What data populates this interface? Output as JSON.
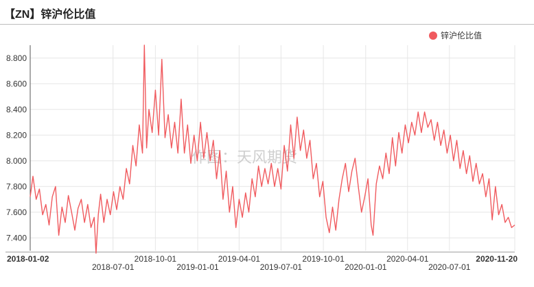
{
  "header": {
    "title": "【ZN】锌沪伦比值"
  },
  "watermark": "作图：天风期货",
  "colors": {
    "series": "#f05a5e",
    "grid": "#e6e6e6",
    "axis": "#555555"
  },
  "chart_data": {
    "type": "line",
    "title": "【ZN】锌沪伦比值",
    "legend_position": "top-right",
    "grid": true,
    "ylim": [
      7.3,
      8.9
    ],
    "xlim": [
      "2018-01-02",
      "2020-11-20"
    ],
    "yticks": [
      "7.400",
      "7.600",
      "7.800",
      "8.000",
      "8.200",
      "8.400",
      "8.600",
      "8.800"
    ],
    "xticks_top": [
      "2018-01-02",
      "2018-10-01",
      "2019-04-01",
      "2019-10-01",
      "2020-04-01",
      "2020-11-20"
    ],
    "xticks_bottom": [
      "2018-07-01",
      "2019-01-01",
      "2019-07-01",
      "2020-01-01",
      "2020-07-01"
    ],
    "series": [
      {
        "name": "锌沪伦比值",
        "points": [
          [
            "2018-01-02",
            7.72
          ],
          [
            "2018-01-08",
            7.88
          ],
          [
            "2018-01-15",
            7.7
          ],
          [
            "2018-01-22",
            7.78
          ],
          [
            "2018-01-29",
            7.58
          ],
          [
            "2018-02-05",
            7.66
          ],
          [
            "2018-02-12",
            7.5
          ],
          [
            "2018-02-19",
            7.72
          ],
          [
            "2018-02-26",
            7.8
          ],
          [
            "2018-03-05",
            7.42
          ],
          [
            "2018-03-12",
            7.64
          ],
          [
            "2018-03-19",
            7.52
          ],
          [
            "2018-03-26",
            7.73
          ],
          [
            "2018-04-02",
            7.6
          ],
          [
            "2018-04-09",
            7.46
          ],
          [
            "2018-04-16",
            7.63
          ],
          [
            "2018-04-23",
            7.7
          ],
          [
            "2018-04-30",
            7.52
          ],
          [
            "2018-05-07",
            7.66
          ],
          [
            "2018-05-14",
            7.48
          ],
          [
            "2018-05-21",
            7.56
          ],
          [
            "2018-05-25",
            7.28
          ],
          [
            "2018-05-30",
            7.58
          ],
          [
            "2018-06-04",
            7.74
          ],
          [
            "2018-06-11",
            7.52
          ],
          [
            "2018-06-18",
            7.7
          ],
          [
            "2018-06-25",
            7.58
          ],
          [
            "2018-07-02",
            7.76
          ],
          [
            "2018-07-09",
            7.62
          ],
          [
            "2018-07-16",
            7.8
          ],
          [
            "2018-07-23",
            7.7
          ],
          [
            "2018-07-30",
            7.94
          ],
          [
            "2018-08-06",
            7.82
          ],
          [
            "2018-08-13",
            8.12
          ],
          [
            "2018-08-20",
            7.96
          ],
          [
            "2018-08-27",
            8.28
          ],
          [
            "2018-09-03",
            8.06
          ],
          [
            "2018-09-07",
            8.9
          ],
          [
            "2018-09-12",
            8.1
          ],
          [
            "2018-09-17",
            8.4
          ],
          [
            "2018-09-24",
            8.22
          ],
          [
            "2018-10-01",
            8.55
          ],
          [
            "2018-10-08",
            8.2
          ],
          [
            "2018-10-15",
            8.79
          ],
          [
            "2018-10-22",
            8.18
          ],
          [
            "2018-10-29",
            8.36
          ],
          [
            "2018-11-05",
            8.1
          ],
          [
            "2018-11-12",
            8.3
          ],
          [
            "2018-11-19",
            8.06
          ],
          [
            "2018-11-26",
            8.48
          ],
          [
            "2018-12-03",
            8.06
          ],
          [
            "2018-12-10",
            8.28
          ],
          [
            "2018-12-17",
            7.98
          ],
          [
            "2018-12-24",
            8.2
          ],
          [
            "2018-12-31",
            8.0
          ],
          [
            "2019-01-07",
            8.3
          ],
          [
            "2019-01-14",
            8.02
          ],
          [
            "2019-01-21",
            8.22
          ],
          [
            "2019-01-28",
            8.0
          ],
          [
            "2019-02-04",
            8.16
          ],
          [
            "2019-02-11",
            7.86
          ],
          [
            "2019-02-18",
            8.08
          ],
          [
            "2019-02-25",
            7.7
          ],
          [
            "2019-03-04",
            7.92
          ],
          [
            "2019-03-11",
            7.6
          ],
          [
            "2019-03-18",
            7.8
          ],
          [
            "2019-03-25",
            7.48
          ],
          [
            "2019-04-01",
            7.7
          ],
          [
            "2019-04-08",
            7.56
          ],
          [
            "2019-04-15",
            7.75
          ],
          [
            "2019-04-22",
            7.6
          ],
          [
            "2019-04-29",
            7.86
          ],
          [
            "2019-05-06",
            7.72
          ],
          [
            "2019-05-13",
            7.96
          ],
          [
            "2019-05-20",
            7.8
          ],
          [
            "2019-05-27",
            7.94
          ],
          [
            "2019-06-03",
            7.82
          ],
          [
            "2019-06-10",
            7.98
          ],
          [
            "2019-06-17",
            7.8
          ],
          [
            "2019-06-24",
            7.94
          ],
          [
            "2019-07-01",
            7.78
          ],
          [
            "2019-07-08",
            8.12
          ],
          [
            "2019-07-15",
            7.92
          ],
          [
            "2019-07-22",
            8.28
          ],
          [
            "2019-07-29",
            8.02
          ],
          [
            "2019-08-05",
            8.34
          ],
          [
            "2019-08-12",
            8.08
          ],
          [
            "2019-08-19",
            8.24
          ],
          [
            "2019-08-26",
            8.02
          ],
          [
            "2019-09-02",
            8.16
          ],
          [
            "2019-09-09",
            7.86
          ],
          [
            "2019-09-16",
            7.98
          ],
          [
            "2019-09-23",
            7.72
          ],
          [
            "2019-09-30",
            7.84
          ],
          [
            "2019-10-07",
            7.56
          ],
          [
            "2019-10-14",
            7.44
          ],
          [
            "2019-10-21",
            7.64
          ],
          [
            "2019-10-28",
            7.46
          ],
          [
            "2019-11-04",
            7.7
          ],
          [
            "2019-11-11",
            7.86
          ],
          [
            "2019-11-18",
            7.98
          ],
          [
            "2019-11-25",
            7.76
          ],
          [
            "2019-12-02",
            7.92
          ],
          [
            "2019-12-09",
            8.02
          ],
          [
            "2019-12-16",
            7.8
          ],
          [
            "2019-12-23",
            7.6
          ],
          [
            "2019-12-30",
            7.72
          ],
          [
            "2020-01-06",
            7.86
          ],
          [
            "2020-01-13",
            7.5
          ],
          [
            "2020-01-17",
            7.42
          ],
          [
            "2020-01-24",
            7.82
          ],
          [
            "2020-01-31",
            7.96
          ],
          [
            "2020-02-07",
            7.86
          ],
          [
            "2020-02-14",
            8.06
          ],
          [
            "2020-02-21",
            7.9
          ],
          [
            "2020-02-28",
            8.18
          ],
          [
            "2020-03-06",
            7.96
          ],
          [
            "2020-03-13",
            8.22
          ],
          [
            "2020-03-20",
            8.06
          ],
          [
            "2020-03-27",
            8.28
          ],
          [
            "2020-04-03",
            8.14
          ],
          [
            "2020-04-10",
            8.3
          ],
          [
            "2020-04-17",
            8.2
          ],
          [
            "2020-04-24",
            8.38
          ],
          [
            "2020-05-01",
            8.22
          ],
          [
            "2020-05-08",
            8.38
          ],
          [
            "2020-05-15",
            8.26
          ],
          [
            "2020-05-22",
            8.32
          ],
          [
            "2020-05-29",
            8.16
          ],
          [
            "2020-06-05",
            8.3
          ],
          [
            "2020-06-12",
            8.12
          ],
          [
            "2020-06-19",
            8.24
          ],
          [
            "2020-06-26",
            8.06
          ],
          [
            "2020-07-03",
            8.2
          ],
          [
            "2020-07-10",
            8.0
          ],
          [
            "2020-07-17",
            8.16
          ],
          [
            "2020-07-24",
            7.94
          ],
          [
            "2020-07-31",
            8.08
          ],
          [
            "2020-08-07",
            7.9
          ],
          [
            "2020-08-14",
            8.04
          ],
          [
            "2020-08-21",
            7.84
          ],
          [
            "2020-08-28",
            7.98
          ],
          [
            "2020-09-04",
            7.82
          ],
          [
            "2020-09-11",
            7.9
          ],
          [
            "2020-09-18",
            7.72
          ],
          [
            "2020-09-25",
            7.86
          ],
          [
            "2020-10-02",
            7.54
          ],
          [
            "2020-10-09",
            7.8
          ],
          [
            "2020-10-16",
            7.58
          ],
          [
            "2020-10-23",
            7.66
          ],
          [
            "2020-10-30",
            7.52
          ],
          [
            "2020-11-06",
            7.56
          ],
          [
            "2020-11-13",
            7.48
          ],
          [
            "2020-11-20",
            7.5
          ]
        ]
      }
    ]
  }
}
